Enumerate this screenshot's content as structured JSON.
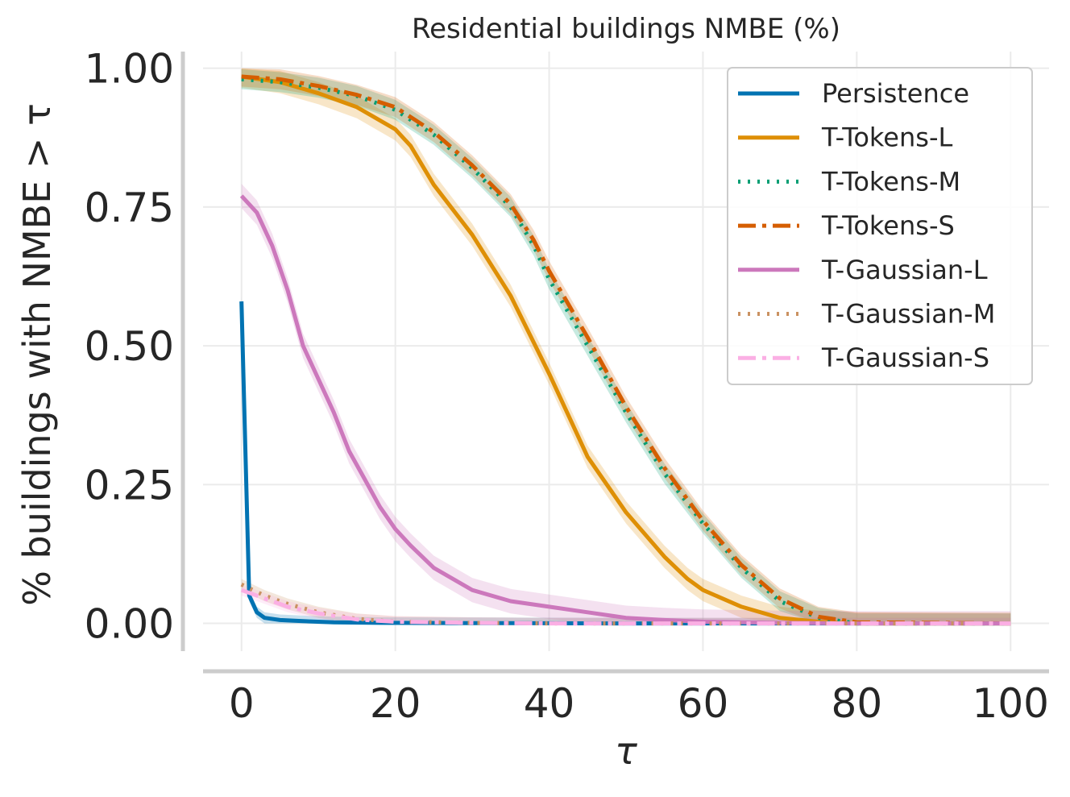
{
  "chart_data": {
    "type": "line",
    "title": "Residential buildings NMBE (%)",
    "xlabel": "τ",
    "ylabel": "% buildings with NMBE  > τ",
    "xlim": [
      -5,
      105
    ],
    "ylim": [
      -0.05,
      1.03
    ],
    "x_ticks": [
      0,
      20,
      40,
      60,
      80,
      100
    ],
    "x_tick_labels": [
      "0",
      "20",
      "40",
      "60",
      "80",
      "100"
    ],
    "y_ticks": [
      0,
      0.25,
      0.5,
      0.75,
      1.0
    ],
    "y_tick_labels": [
      "0.00",
      "0.25",
      "0.50",
      "0.75",
      "1.00"
    ],
    "grid": true,
    "legend_position": "top-right",
    "series": [
      {
        "name": "Persistence",
        "color": "#0173b2",
        "dash": "solid",
        "band": 0.01,
        "points": [
          [
            0,
            0.58
          ],
          [
            1,
            0.05
          ],
          [
            2,
            0.02
          ],
          [
            3,
            0.01
          ],
          [
            5,
            0.006
          ],
          [
            8,
            0.004
          ],
          [
            12,
            0.002
          ],
          [
            18,
            0.001
          ],
          [
            30,
            0.0005
          ],
          [
            50,
            0
          ],
          [
            100,
            0
          ]
        ]
      },
      {
        "name": "T-Tokens-L",
        "color": "#de8f05",
        "dash": "solid",
        "band": 0.02,
        "points": [
          [
            0,
            0.985
          ],
          [
            5,
            0.975
          ],
          [
            10,
            0.955
          ],
          [
            15,
            0.93
          ],
          [
            20,
            0.89
          ],
          [
            22,
            0.86
          ],
          [
            25,
            0.79
          ],
          [
            30,
            0.7
          ],
          [
            35,
            0.59
          ],
          [
            40,
            0.45
          ],
          [
            45,
            0.3
          ],
          [
            50,
            0.2
          ],
          [
            55,
            0.12
          ],
          [
            58,
            0.08
          ],
          [
            60,
            0.06
          ],
          [
            65,
            0.03
          ],
          [
            70,
            0.01
          ],
          [
            75,
            0.003
          ],
          [
            80,
            0
          ],
          [
            100,
            0
          ]
        ]
      },
      {
        "name": "T-Tokens-M",
        "color": "#029e73",
        "dash": "dotted",
        "band": 0.018,
        "points": [
          [
            0,
            0.98
          ],
          [
            5,
            0.975
          ],
          [
            10,
            0.965
          ],
          [
            15,
            0.95
          ],
          [
            20,
            0.925
          ],
          [
            25,
            0.88
          ],
          [
            30,
            0.82
          ],
          [
            35,
            0.75
          ],
          [
            38,
            0.68
          ],
          [
            40,
            0.62
          ],
          [
            45,
            0.5
          ],
          [
            50,
            0.38
          ],
          [
            55,
            0.27
          ],
          [
            60,
            0.18
          ],
          [
            65,
            0.1
          ],
          [
            70,
            0.04
          ],
          [
            75,
            0.01
          ],
          [
            80,
            0
          ],
          [
            100,
            0
          ]
        ]
      },
      {
        "name": "T-Tokens-S",
        "color": "#d55e00",
        "dash": "dashdot",
        "band": 0.018,
        "points": [
          [
            0,
            0.985
          ],
          [
            5,
            0.98
          ],
          [
            10,
            0.968
          ],
          [
            15,
            0.952
          ],
          [
            20,
            0.93
          ],
          [
            25,
            0.885
          ],
          [
            30,
            0.825
          ],
          [
            35,
            0.755
          ],
          [
            38,
            0.69
          ],
          [
            40,
            0.635
          ],
          [
            45,
            0.515
          ],
          [
            50,
            0.39
          ],
          [
            55,
            0.28
          ],
          [
            60,
            0.185
          ],
          [
            65,
            0.105
          ],
          [
            70,
            0.045
          ],
          [
            75,
            0.012
          ],
          [
            80,
            0.002
          ],
          [
            100,
            0
          ]
        ]
      },
      {
        "name": "T-Gaussian-L",
        "color": "#cc78bc",
        "dash": "solid",
        "band": 0.022,
        "points": [
          [
            0,
            0.77
          ],
          [
            2,
            0.74
          ],
          [
            4,
            0.68
          ],
          [
            6,
            0.6
          ],
          [
            8,
            0.5
          ],
          [
            10,
            0.44
          ],
          [
            12,
            0.38
          ],
          [
            14,
            0.31
          ],
          [
            16,
            0.26
          ],
          [
            18,
            0.21
          ],
          [
            20,
            0.17
          ],
          [
            22,
            0.14
          ],
          [
            25,
            0.1
          ],
          [
            30,
            0.06
          ],
          [
            35,
            0.04
          ],
          [
            40,
            0.03
          ],
          [
            45,
            0.02
          ],
          [
            50,
            0.01
          ],
          [
            55,
            0.006
          ],
          [
            60,
            0.003
          ],
          [
            70,
            0.001
          ],
          [
            80,
            0
          ],
          [
            100,
            0
          ]
        ]
      },
      {
        "name": "T-Gaussian-M",
        "color": "#ca9161",
        "dash": "dotted",
        "band": 0.01,
        "points": [
          [
            0,
            0.07
          ],
          [
            3,
            0.05
          ],
          [
            6,
            0.035
          ],
          [
            10,
            0.02
          ],
          [
            15,
            0.008
          ],
          [
            20,
            0.003
          ],
          [
            30,
            0.001
          ],
          [
            40,
            0
          ],
          [
            100,
            0
          ]
        ]
      },
      {
        "name": "T-Gaussian-S",
        "color": "#fbafe4",
        "dash": "dashdot",
        "band": 0.01,
        "points": [
          [
            0,
            0.06
          ],
          [
            3,
            0.045
          ],
          [
            6,
            0.03
          ],
          [
            10,
            0.018
          ],
          [
            15,
            0.007
          ],
          [
            20,
            0.003
          ],
          [
            30,
            0.001
          ],
          [
            40,
            0
          ],
          [
            100,
            0
          ]
        ]
      }
    ]
  }
}
